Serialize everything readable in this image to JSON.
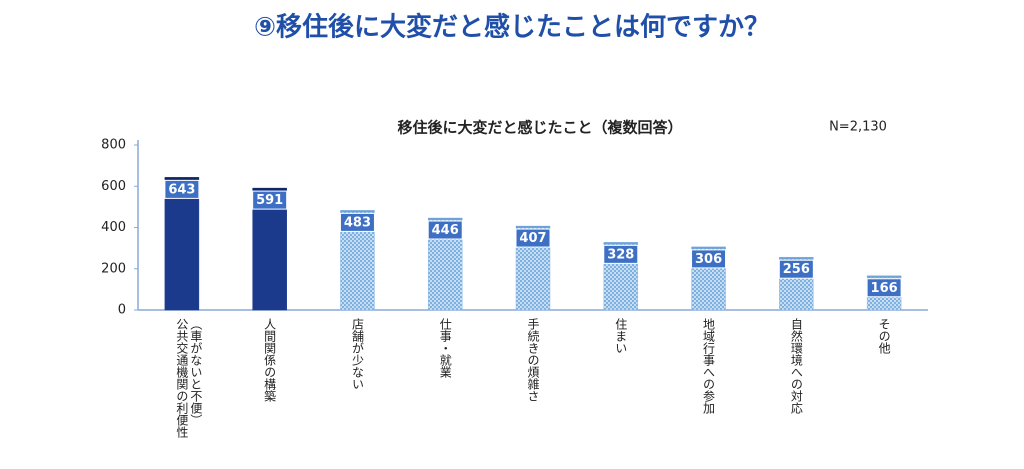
{
  "chart_data": {
    "type": "bar",
    "page_title": "⑨移住後に大変だと感じたことは何ですか？",
    "title": "移住後に大変だと感じたこと（複数回答）",
    "note": "N=2,130",
    "categories": [
      "公共交通機関の利便性\n（車がないと不便）",
      "人間関係の構築",
      "店舗が少ない",
      "仕事・就業",
      "手続きの煩雑さ",
      "住まい",
      "地域行事への参加",
      "自然環境への対応",
      "その他"
    ],
    "values": [
      643,
      591,
      483,
      446,
      407,
      328,
      306,
      256,
      166
    ],
    "colors": [
      "#1b3a8c",
      "#1b3a8c",
      "#8fbde6",
      "#8fbde6",
      "#8fbde6",
      "#8fbde6",
      "#8fbde6",
      "#8fbde6",
      "#8fbde6"
    ],
    "hatched": [
      false,
      false,
      true,
      true,
      true,
      true,
      true,
      true,
      true
    ],
    "label_color": "#3d6fc4",
    "ylim": [
      0,
      800
    ],
    "yticks": [
      0,
      200,
      400,
      600,
      800
    ],
    "grid": false
  }
}
